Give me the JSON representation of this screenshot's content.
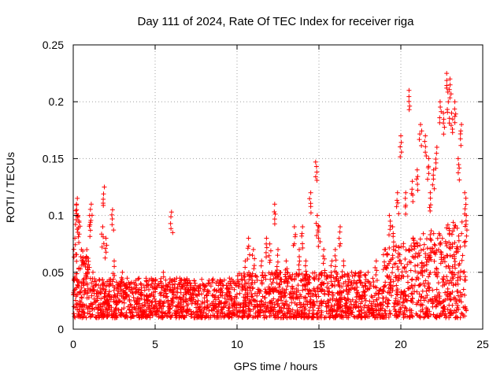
{
  "chart_data": {
    "type": "scatter",
    "title": "Day 111 of 2024, Rate Of TEC Index for receiver riga",
    "xlabel": "GPS time / hours",
    "ylabel": "ROTI / TECUs",
    "xlim": [
      0,
      25
    ],
    "ylim": [
      0,
      0.25
    ],
    "xticks": [
      0,
      5,
      10,
      15,
      20,
      25
    ],
    "xtick_labels": [
      "0",
      "5",
      "10",
      "15",
      "20",
      "25"
    ],
    "yticks": [
      0,
      0.05,
      0.1,
      0.15,
      0.2,
      0.25
    ],
    "ytick_labels": [
      "0",
      "0.05",
      "0.1",
      "0.15",
      "0.2",
      "0.25"
    ],
    "grid": true,
    "marker": "+",
    "color": "#ff0000",
    "series": [
      {
        "name": "ROTI",
        "x": [
          0.1,
          0.2,
          0.25,
          0.3,
          0.35,
          0.5,
          0.8,
          1.0,
          1.1,
          1.2,
          1.8,
          1.9,
          2.0,
          2.4,
          2.5,
          3.0,
          3.5,
          4.0,
          4.5,
          5.0,
          5.5,
          6.0,
          6.5,
          7.0,
          7.5,
          8.0,
          8.5,
          9.0,
          9.5,
          10.0,
          10.5,
          10.7,
          11.0,
          11.5,
          11.8,
          12.0,
          12.3,
          12.5,
          13.0,
          13.5,
          13.8,
          14.0,
          14.2,
          14.5,
          14.8,
          14.9,
          15.0,
          15.3,
          15.8,
          16.0,
          16.3,
          16.5,
          17.0,
          17.5,
          18.0,
          18.5,
          19.0,
          19.3,
          19.5,
          19.8,
          20.0,
          20.3,
          20.5,
          20.7,
          21.0,
          21.2,
          21.5,
          21.7,
          21.8,
          22.0,
          22.2,
          22.4,
          22.6,
          22.8,
          22.9,
          23.0,
          23.1,
          23.3,
          23.5,
          23.7,
          23.9,
          24.0
        ],
        "y": [
          0.08,
          0.11,
          0.115,
          0.1,
          0.095,
          0.07,
          0.06,
          0.1,
          0.11,
          0.05,
          0.09,
          0.125,
          0.08,
          0.105,
          0.06,
          0.05,
          0.04,
          0.035,
          0.03,
          0.04,
          0.05,
          0.103,
          0.04,
          0.035,
          0.03,
          0.035,
          0.03,
          0.03,
          0.035,
          0.04,
          0.06,
          0.08,
          0.07,
          0.06,
          0.08,
          0.075,
          0.11,
          0.07,
          0.06,
          0.09,
          0.07,
          0.09,
          0.06,
          0.12,
          0.147,
          0.1,
          0.09,
          0.07,
          0.06,
          0.07,
          0.09,
          0.06,
          0.05,
          0.05,
          0.05,
          0.06,
          0.07,
          0.1,
          0.09,
          0.12,
          0.17,
          0.12,
          0.21,
          0.13,
          0.14,
          0.18,
          0.17,
          0.15,
          0.12,
          0.14,
          0.16,
          0.2,
          0.19,
          0.225,
          0.2,
          0.22,
          0.19,
          0.2,
          0.15,
          0.18,
          0.12,
          0.1
        ]
      }
    ],
    "background_band": {
      "x_range": [
        0,
        24
      ],
      "typical_y_range": [
        0.01,
        0.045
      ]
    }
  }
}
